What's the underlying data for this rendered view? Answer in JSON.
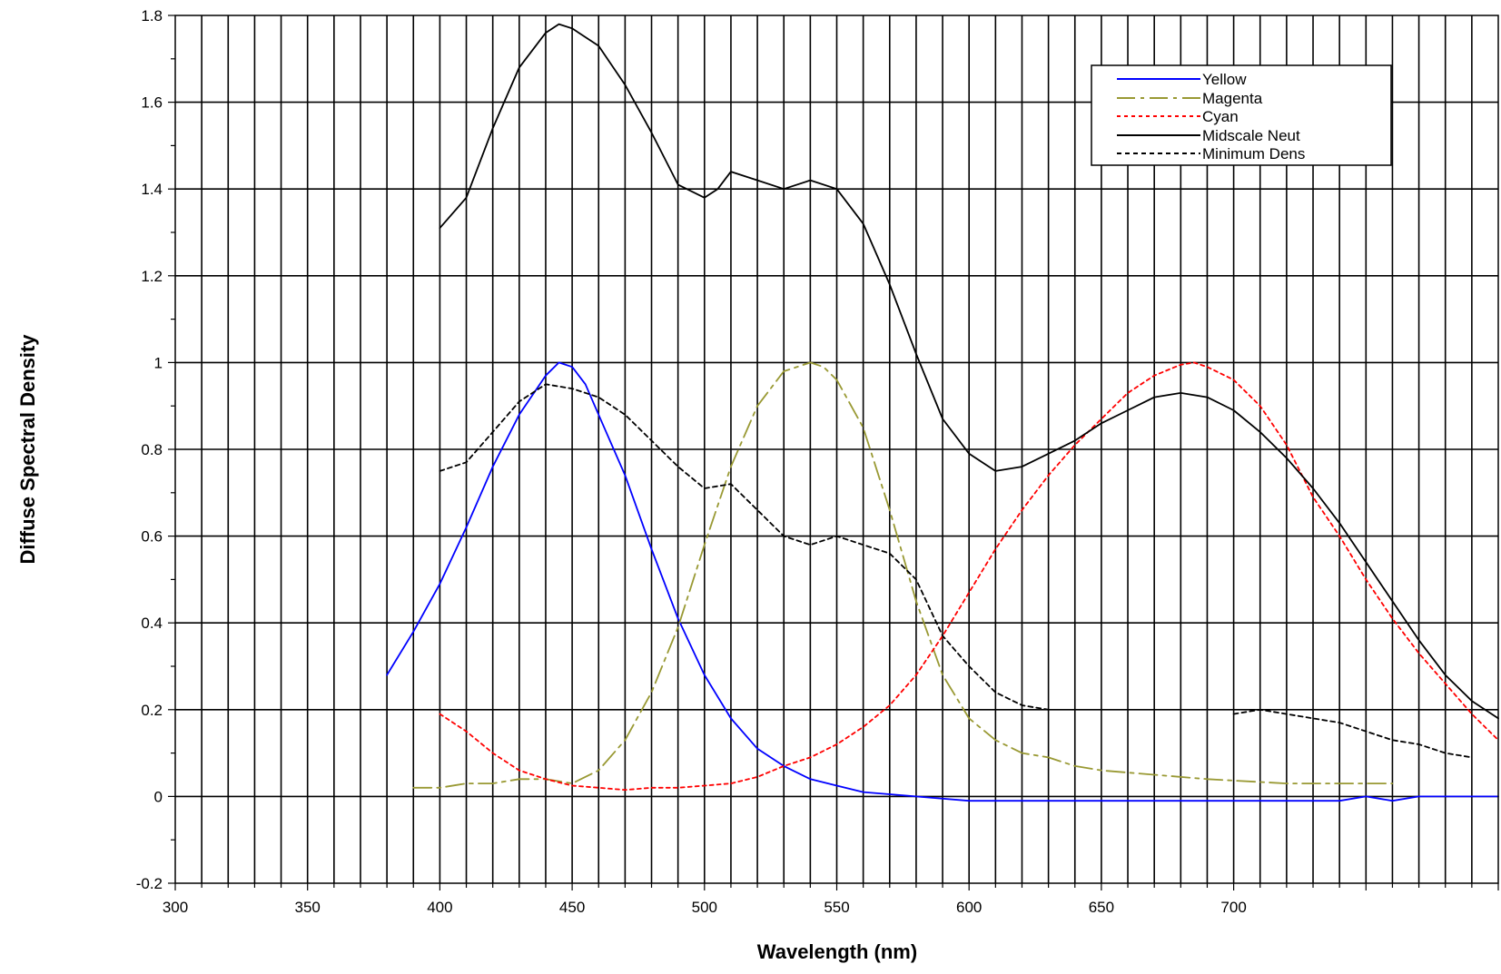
{
  "chart_data": {
    "type": "line",
    "title": "",
    "xlabel": "Wavelength (nm)",
    "ylabel": "Diffuse Spectral Density",
    "xlim": [
      300,
      800
    ],
    "ylim": [
      -0.2,
      1.8
    ],
    "x_tick_labels": [
      "300",
      "350",
      "400",
      "450",
      "500",
      "550",
      "600",
      "650",
      "700"
    ],
    "y_tick_labels": [
      "-0.2",
      "0",
      "0.2",
      "0.4",
      "0.6",
      "0.8",
      "1",
      "1.2",
      "1.4",
      "1.6",
      "1.8"
    ],
    "grid": true,
    "legend_position": "top-right",
    "series": [
      {
        "name": "Yellow",
        "color": "#0000ff",
        "style": "solid",
        "points": [
          [
            380,
            0.28
          ],
          [
            390,
            0.38
          ],
          [
            400,
            0.49
          ],
          [
            410,
            0.62
          ],
          [
            420,
            0.76
          ],
          [
            430,
            0.88
          ],
          [
            440,
            0.97
          ],
          [
            445,
            1.0
          ],
          [
            450,
            0.99
          ],
          [
            455,
            0.95
          ],
          [
            460,
            0.88
          ],
          [
            470,
            0.74
          ],
          [
            480,
            0.57
          ],
          [
            490,
            0.41
          ],
          [
            500,
            0.28
          ],
          [
            510,
            0.18
          ],
          [
            520,
            0.11
          ],
          [
            530,
            0.07
          ],
          [
            540,
            0.04
          ],
          [
            550,
            0.025
          ],
          [
            560,
            0.01
          ],
          [
            570,
            0.005
          ],
          [
            580,
            0.0
          ],
          [
            600,
            -0.01
          ],
          [
            650,
            -0.01
          ],
          [
            700,
            -0.01
          ],
          [
            740,
            -0.01
          ],
          [
            750,
            0.0
          ],
          [
            760,
            -0.01
          ],
          [
            770,
            0.0
          ],
          [
            780,
            0.0
          ],
          [
            800,
            0.0
          ]
        ]
      },
      {
        "name": "Magenta",
        "color": "#999933",
        "style": "dashdot",
        "points": [
          [
            390,
            0.02
          ],
          [
            400,
            0.02
          ],
          [
            410,
            0.03
          ],
          [
            420,
            0.03
          ],
          [
            430,
            0.04
          ],
          [
            440,
            0.04
          ],
          [
            450,
            0.03
          ],
          [
            460,
            0.06
          ],
          [
            470,
            0.13
          ],
          [
            480,
            0.24
          ],
          [
            490,
            0.39
          ],
          [
            500,
            0.58
          ],
          [
            510,
            0.76
          ],
          [
            520,
            0.9
          ],
          [
            530,
            0.98
          ],
          [
            540,
            1.0
          ],
          [
            545,
            0.99
          ],
          [
            550,
            0.96
          ],
          [
            560,
            0.85
          ],
          [
            570,
            0.66
          ],
          [
            580,
            0.45
          ],
          [
            590,
            0.28
          ],
          [
            600,
            0.18
          ],
          [
            610,
            0.13
          ],
          [
            620,
            0.1
          ],
          [
            630,
            0.09
          ],
          [
            640,
            0.07
          ],
          [
            650,
            0.06
          ],
          [
            670,
            0.05
          ],
          [
            690,
            0.04
          ],
          [
            720,
            0.03
          ],
          [
            750,
            0.03
          ],
          [
            760,
            0.03
          ]
        ]
      },
      {
        "name": "Cyan",
        "color": "#ff0000",
        "style": "dotted",
        "points": [
          [
            400,
            0.19
          ],
          [
            410,
            0.15
          ],
          [
            420,
            0.1
          ],
          [
            430,
            0.06
          ],
          [
            440,
            0.04
          ],
          [
            450,
            0.025
          ],
          [
            460,
            0.02
          ],
          [
            470,
            0.015
          ],
          [
            480,
            0.02
          ],
          [
            490,
            0.02
          ],
          [
            500,
            0.025
          ],
          [
            510,
            0.03
          ],
          [
            520,
            0.045
          ],
          [
            530,
            0.07
          ],
          [
            540,
            0.09
          ],
          [
            550,
            0.12
          ],
          [
            560,
            0.16
          ],
          [
            570,
            0.21
          ],
          [
            580,
            0.28
          ],
          [
            590,
            0.37
          ],
          [
            600,
            0.47
          ],
          [
            610,
            0.57
          ],
          [
            620,
            0.66
          ],
          [
            630,
            0.74
          ],
          [
            640,
            0.81
          ],
          [
            650,
            0.87
          ],
          [
            660,
            0.93
          ],
          [
            670,
            0.97
          ],
          [
            680,
            0.995
          ],
          [
            685,
            1.0
          ],
          [
            690,
            0.99
          ],
          [
            700,
            0.96
          ],
          [
            710,
            0.9
          ],
          [
            720,
            0.81
          ],
          [
            730,
            0.69
          ],
          [
            740,
            0.6
          ],
          [
            750,
            0.5
          ],
          [
            760,
            0.41
          ],
          [
            770,
            0.33
          ],
          [
            780,
            0.26
          ],
          [
            790,
            0.19
          ],
          [
            800,
            0.13
          ]
        ]
      },
      {
        "name": "Midscale Neut",
        "color": "#000000",
        "style": "solid",
        "points": [
          [
            400,
            1.31
          ],
          [
            410,
            1.38
          ],
          [
            420,
            1.54
          ],
          [
            430,
            1.68
          ],
          [
            440,
            1.76
          ],
          [
            445,
            1.78
          ],
          [
            450,
            1.77
          ],
          [
            460,
            1.73
          ],
          [
            470,
            1.64
          ],
          [
            480,
            1.53
          ],
          [
            490,
            1.41
          ],
          [
            500,
            1.38
          ],
          [
            505,
            1.4
          ],
          [
            510,
            1.44
          ],
          [
            520,
            1.42
          ],
          [
            530,
            1.4
          ],
          [
            540,
            1.42
          ],
          [
            550,
            1.4
          ],
          [
            560,
            1.32
          ],
          [
            570,
            1.18
          ],
          [
            580,
            1.02
          ],
          [
            590,
            0.87
          ],
          [
            600,
            0.79
          ],
          [
            610,
            0.75
          ],
          [
            620,
            0.76
          ],
          [
            630,
            0.79
          ],
          [
            640,
            0.82
          ],
          [
            650,
            0.86
          ],
          [
            660,
            0.89
          ],
          [
            670,
            0.92
          ],
          [
            680,
            0.93
          ],
          [
            690,
            0.92
          ],
          [
            700,
            0.89
          ],
          [
            710,
            0.84
          ],
          [
            720,
            0.78
          ],
          [
            730,
            0.71
          ],
          [
            740,
            0.63
          ],
          [
            750,
            0.54
          ],
          [
            760,
            0.45
          ],
          [
            770,
            0.36
          ],
          [
            780,
            0.28
          ],
          [
            790,
            0.22
          ],
          [
            800,
            0.18
          ]
        ]
      },
      {
        "name": "Minimum Dens",
        "color": "#000000",
        "style": "dashed",
        "points": [
          [
            400,
            0.75
          ],
          [
            410,
            0.77
          ],
          [
            420,
            0.84
          ],
          [
            430,
            0.91
          ],
          [
            440,
            0.95
          ],
          [
            450,
            0.94
          ],
          [
            460,
            0.92
          ],
          [
            470,
            0.88
          ],
          [
            480,
            0.82
          ],
          [
            490,
            0.76
          ],
          [
            500,
            0.71
          ],
          [
            510,
            0.72
          ],
          [
            520,
            0.66
          ],
          [
            530,
            0.6
          ],
          [
            540,
            0.58
          ],
          [
            550,
            0.6
          ],
          [
            560,
            0.58
          ],
          [
            570,
            0.56
          ],
          [
            580,
            0.5
          ],
          [
            590,
            0.37
          ],
          [
            600,
            0.3
          ],
          [
            610,
            0.24
          ],
          [
            620,
            0.21
          ],
          [
            630,
            0.2
          ]
        ],
        "points2": [
          [
            700,
            0.19
          ],
          [
            710,
            0.2
          ],
          [
            720,
            0.19
          ],
          [
            730,
            0.18
          ],
          [
            740,
            0.17
          ],
          [
            750,
            0.15
          ],
          [
            760,
            0.13
          ],
          [
            770,
            0.12
          ],
          [
            780,
            0.1
          ],
          [
            790,
            0.09
          ]
        ]
      }
    ]
  }
}
